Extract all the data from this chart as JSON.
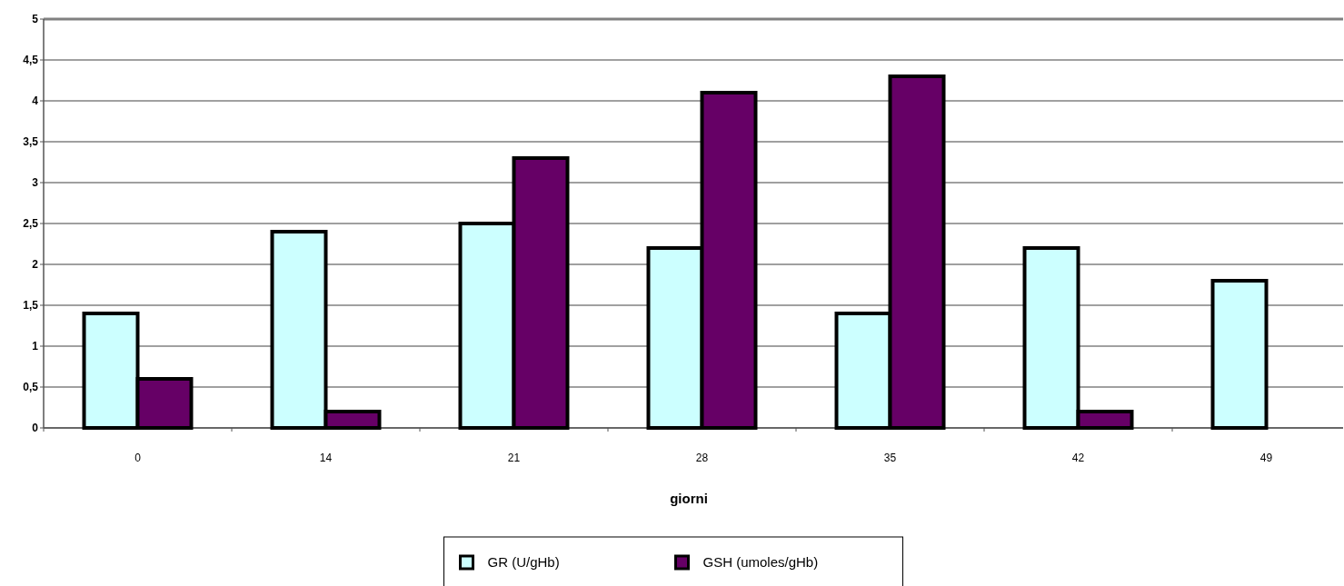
{
  "chart_data": {
    "type": "bar",
    "xlabel": "giorni",
    "categories": [
      "0",
      "14",
      "21",
      "28",
      "35",
      "42",
      "49"
    ],
    "series": [
      {
        "name": "GR (U/gHb)",
        "color": "#ccffff",
        "values": [
          1.4,
          2.4,
          2.5,
          2.2,
          1.4,
          2.2,
          1.8
        ]
      },
      {
        "name": "GSH (umoles/gHb)",
        "color": "#660066",
        "values": [
          0.6,
          0.2,
          3.3,
          4.1,
          4.3,
          0.2,
          null
        ]
      }
    ],
    "ylim": [
      0,
      5
    ],
    "yticks": [
      0,
      {
        "value": 0.5,
        "label": "0,5"
      },
      1,
      {
        "value": 1.5,
        "label": "1,5"
      },
      2,
      {
        "value": 2.5,
        "label": "2,5"
      },
      3,
      {
        "value": 3.5,
        "label": "3,5"
      },
      4,
      {
        "value": 4.5,
        "label": "4,5"
      },
      5
    ],
    "grid": "y",
    "legend": "bottom"
  }
}
